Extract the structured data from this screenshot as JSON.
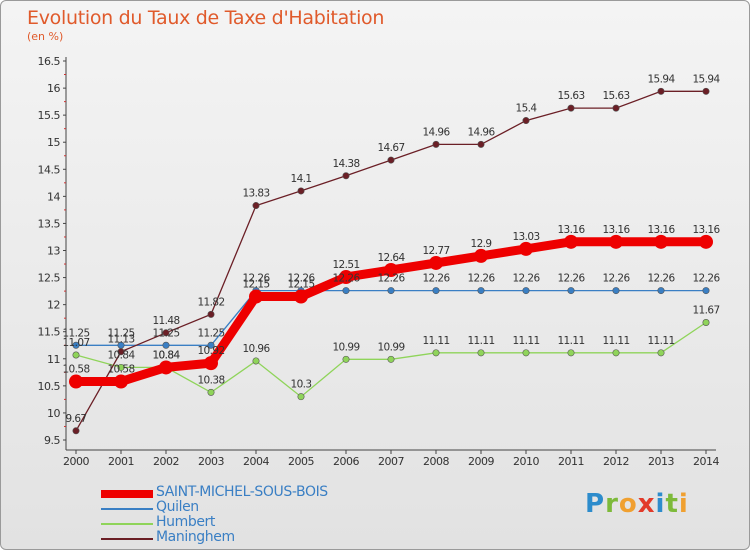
{
  "title": "Evolution du Taux de Taxe d'Habitation",
  "unit_label": "(en %)",
  "logo": {
    "text": "Proxiti",
    "letters": [
      {
        "ch": "P",
        "color": "#2d8ccc"
      },
      {
        "ch": "r",
        "color": "#7dba3a"
      },
      {
        "ch": "o",
        "color": "#f0a030"
      },
      {
        "ch": "x",
        "color": "#e23a2a"
      },
      {
        "ch": "i",
        "color": "#2d8ccc"
      },
      {
        "ch": "t",
        "color": "#7dba3a"
      },
      {
        "ch": "i",
        "color": "#f0a030"
      }
    ]
  },
  "chart_data": {
    "type": "line",
    "x": [
      "2000",
      "2001",
      "2002",
      "2003",
      "2004",
      "2005",
      "2006",
      "2007",
      "2008",
      "2009",
      "2010",
      "2011",
      "2012",
      "2013",
      "2014"
    ],
    "ylim": [
      9.5,
      16.5
    ],
    "yticks": [
      "9.5",
      "10",
      "10.5",
      "11",
      "11.5",
      "12",
      "12.5",
      "13",
      "13.5",
      "14",
      "14.5",
      "15",
      "15.5",
      "16",
      "16.5"
    ],
    "grid": false,
    "legend_position": "bottom-left",
    "series": [
      {
        "name": "SAINT-MICHEL-SOUS-BOIS",
        "color": "#ee0000",
        "emphasis": true,
        "values": [
          10.58,
          10.58,
          10.84,
          10.92,
          12.15,
          12.15,
          12.51,
          12.64,
          12.77,
          12.9,
          13.03,
          13.16,
          13.16,
          13.16,
          13.16
        ],
        "labels": [
          "10.58",
          "10.58",
          "10.84",
          "10.92",
          "12.15",
          "12.15",
          "12.51",
          "12.64",
          "12.77",
          "12.9",
          "13.03",
          "13.16",
          "13.16",
          "13.16",
          "13.16"
        ]
      },
      {
        "name": "Quilen",
        "color": "#3a7fc4",
        "values": [
          11.25,
          11.25,
          11.25,
          11.25,
          12.26,
          12.26,
          12.26,
          12.26,
          12.26,
          12.26,
          12.26,
          12.26,
          12.26,
          12.26,
          12.26
        ],
        "labels": [
          "11.25",
          "11.25",
          "11.25",
          "11.25",
          "12.26",
          "12.26",
          "12.26",
          "12.26",
          "12.26",
          "12.26",
          "12.26",
          "12.26",
          "12.26",
          "12.26",
          "12.26"
        ]
      },
      {
        "name": "Humbert",
        "color": "#8fd45a",
        "values": [
          11.07,
          10.84,
          10.84,
          10.38,
          10.96,
          10.3,
          10.99,
          10.99,
          11.11,
          11.11,
          11.11,
          11.11,
          11.11,
          11.11,
          11.67
        ],
        "labels": [
          "11.07",
          "10.84",
          "10.84",
          "10.38",
          "10.96",
          "10.3",
          "10.99",
          "10.99",
          "11.11",
          "11.11",
          "11.11",
          "11.11",
          "11.11",
          "11.11",
          "11.67"
        ]
      },
      {
        "name": "Maninghem",
        "color": "#6b1f26",
        "values": [
          9.67,
          11.13,
          11.48,
          11.82,
          13.83,
          14.1,
          14.38,
          14.67,
          14.96,
          14.96,
          15.4,
          15.63,
          15.63,
          15.94,
          15.94
        ],
        "labels": [
          "9.67",
          "11.13",
          "11.48",
          "11.82",
          "13.83",
          "14.1",
          "14.38",
          "14.67",
          "14.96",
          "14.96",
          "15.4",
          "15.63",
          "15.63",
          "15.94",
          "15.94"
        ]
      }
    ]
  }
}
